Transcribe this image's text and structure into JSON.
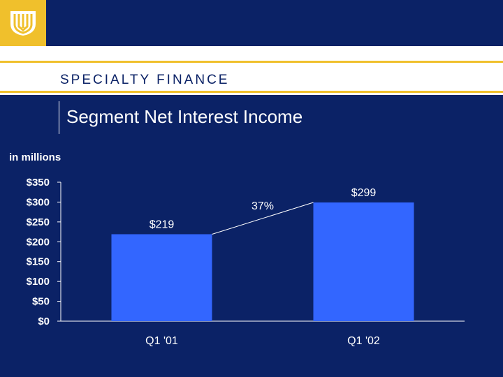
{
  "header": {
    "section_title": "SPECIALTY FINANCE",
    "page_title": "Segment Net Interest Income",
    "logo_icon": "company-logo-icon"
  },
  "colors": {
    "background": "#0b2266",
    "accent_gold": "#f0c02c",
    "bar": "#3366ff",
    "text": "#ffffff"
  },
  "chart_data": {
    "type": "bar",
    "title": "Segment Net Interest Income",
    "ylabel": "in millions",
    "xlabel": "",
    "categories": [
      "Q1 '01",
      "Q1 '02"
    ],
    "values": [
      219,
      299
    ],
    "data_labels": [
      "$219",
      "$299"
    ],
    "ylim": [
      0,
      350
    ],
    "yticks": [
      0,
      50,
      100,
      150,
      200,
      250,
      300,
      350
    ],
    "ytick_labels": [
      "$0",
      "$50",
      "$100",
      "$150",
      "$200",
      "$250",
      "$300",
      "$350"
    ],
    "grid": false,
    "legend": "none",
    "annotation": "37%"
  }
}
